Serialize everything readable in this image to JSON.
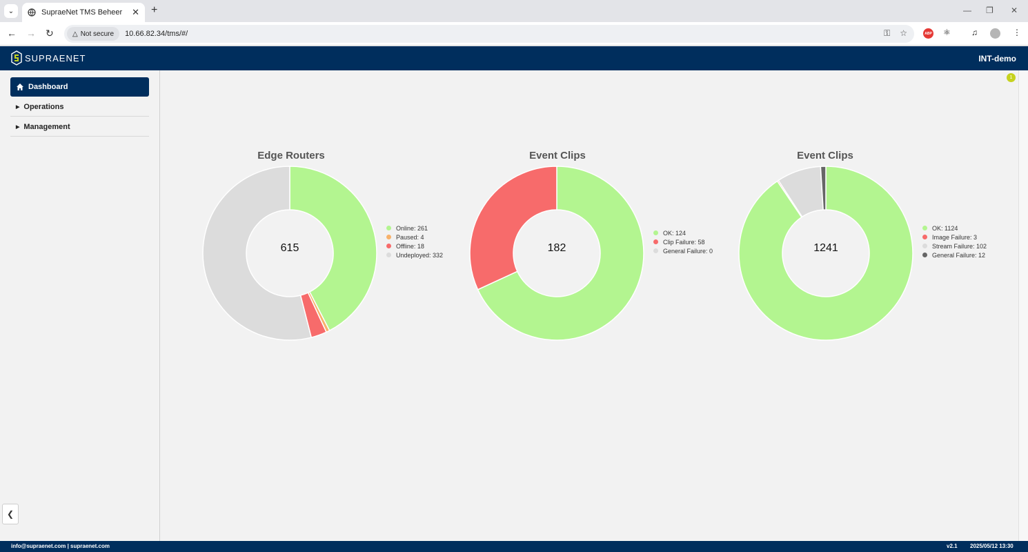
{
  "browser": {
    "tab_title": "SupraeNet TMS Beheer",
    "security_chip": "Not secure",
    "url": "10.66.82.34/tms/#/"
  },
  "app": {
    "brand": "SUPRAENET",
    "environment": "INT-demo",
    "notification_count": "1"
  },
  "sidebar": {
    "items": [
      {
        "label": "Dashboard",
        "active": true
      },
      {
        "label": "Operations"
      },
      {
        "label": "Management"
      }
    ]
  },
  "charts_text": {
    "c0": {
      "title": "Edge Routers",
      "total": "615",
      "legend": [
        "Online: 261",
        "Paused: 4",
        "Offline: 18",
        "Undeployed: 332"
      ]
    },
    "c1": {
      "title": "Event Clips",
      "total": "182",
      "legend": [
        "OK: 124",
        "Clip Failure: 58",
        "General Failure: 0"
      ]
    },
    "c2": {
      "title": "Event Clips",
      "total": "1241",
      "legend": [
        "OK: 1124",
        "Image Failure: 3",
        "Stream Failure: 102",
        "General Failure: 12"
      ]
    }
  },
  "chart_data": [
    {
      "type": "pie",
      "title": "Edge Routers",
      "categories": [
        "Online",
        "Paused",
        "Offline",
        "Undeployed"
      ],
      "values": [
        261,
        4,
        18,
        332
      ],
      "colors": [
        "#b3f590",
        "#f7b26b",
        "#f76b6b",
        "#dcdcdc"
      ],
      "legend_position": "right"
    },
    {
      "type": "pie",
      "title": "Event Clips",
      "categories": [
        "OK",
        "Clip Failure",
        "General Failure"
      ],
      "values": [
        124,
        58,
        0
      ],
      "colors": [
        "#b3f590",
        "#f76b6b",
        "#dcdcdc"
      ],
      "legend_position": "right"
    },
    {
      "type": "pie",
      "title": "Event Clips",
      "categories": [
        "OK",
        "Image Failure",
        "Stream Failure",
        "General Failure"
      ],
      "values": [
        1124,
        3,
        102,
        12
      ],
      "colors": [
        "#b3f590",
        "#f76b6b",
        "#dcdcdc",
        "#666666"
      ],
      "legend_position": "right"
    }
  ],
  "footer": {
    "contact": "info@supraenet.com | supraenet.com",
    "version": "v2.1",
    "datetime": "2025/05/12 13:30"
  }
}
